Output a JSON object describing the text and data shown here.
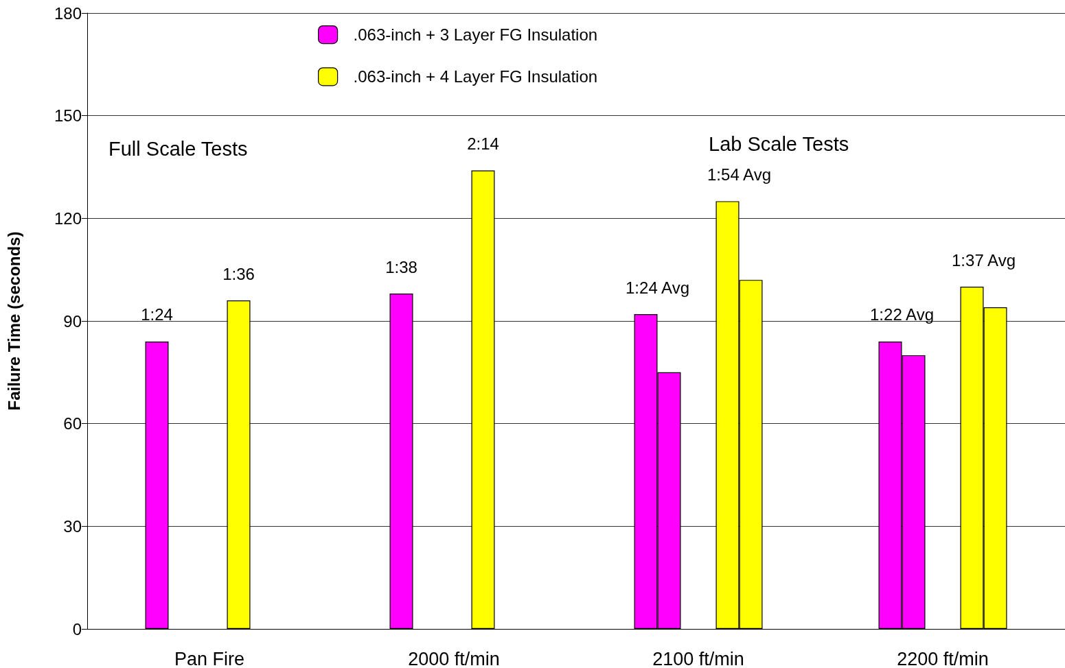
{
  "chart_data": {
    "type": "bar",
    "ylabel": "Failure Time (seconds)",
    "categories": [
      "Pan Fire",
      "2000 ft/min",
      "2100 ft/min",
      "2200 ft/min"
    ],
    "series": [
      {
        "name": ".063-inch + 3 Layer FG Insulation",
        "color": "#ff00ff",
        "values": [
          84,
          98,
          92,
          84
        ],
        "value_labels": [
          "1:24",
          "1:38",
          "1:24 Avg",
          "1:22 Avg"
        ]
      },
      {
        "color": "#ff00ff",
        "values": [
          null,
          null,
          75,
          80
        ]
      },
      {
        "name": ".063-inch + 4 Layer FG Insulation",
        "color": "#ffff00",
        "values": [
          96,
          134,
          125,
          100
        ],
        "value_labels": [
          "1:36",
          "2:14",
          "1:54 Avg",
          "1:37 Avg"
        ]
      },
      {
        "color": "#ffff00",
        "values": [
          null,
          null,
          102,
          94
        ]
      }
    ],
    "ylim": [
      0,
      180
    ],
    "yticks": [
      0,
      30,
      60,
      90,
      120,
      150,
      180
    ],
    "grid": "y",
    "legend": "top",
    "annotations": [
      "Full Scale Tests",
      "Lab Scale Tests"
    ]
  }
}
